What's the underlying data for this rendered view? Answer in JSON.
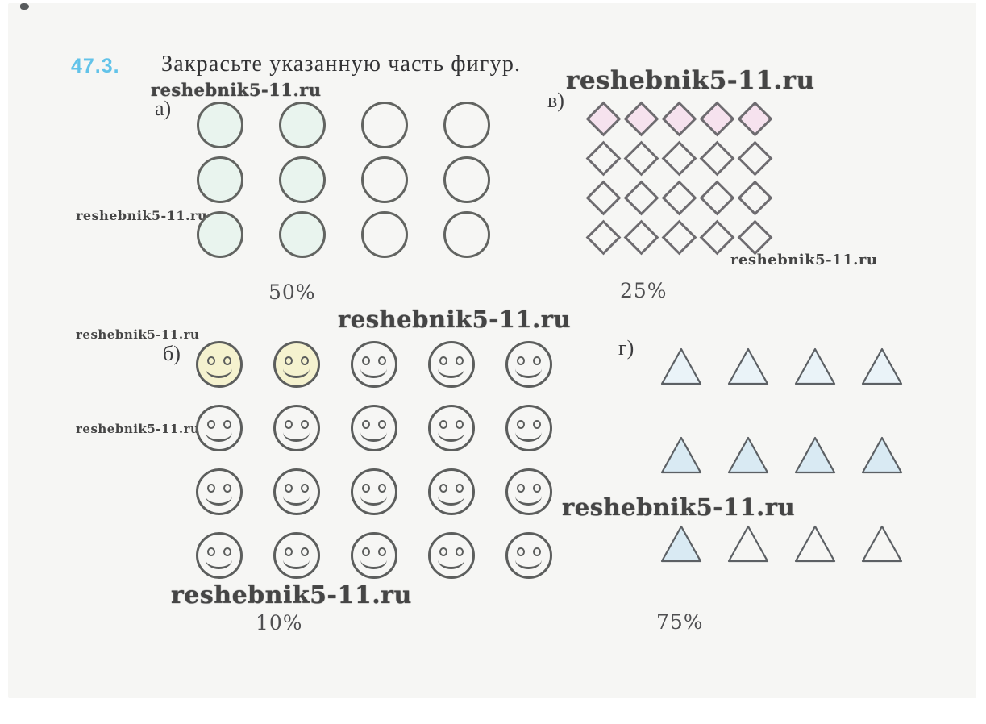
{
  "problem": {
    "number": "47.3.",
    "title": "Закрасьте указанную часть фигур."
  },
  "watermark": {
    "text": "reshebnik5-11.ru"
  },
  "colors": {
    "accent_number": "#62c3e9",
    "outline_gray": "#5f6160",
    "circle_shade": "#e9f4ee",
    "diamond_shade": "#f6e2ee",
    "smiley_shade": "#f5f2cf",
    "triangle_shade_light": "#eaf3f8",
    "triangle_shade_med": "#d9eaf3"
  },
  "sections": [
    {
      "key": "a",
      "label": "а)",
      "shape": "circle",
      "rows": 3,
      "cols": 4,
      "percent_label": "50%",
      "shaded": [
        [
          0,
          0
        ],
        [
          0,
          1
        ],
        [
          1,
          0
        ],
        [
          1,
          1
        ],
        [
          2,
          0
        ],
        [
          2,
          1
        ]
      ]
    },
    {
      "key": "v",
      "label": "в)",
      "shape": "diamond",
      "rows": 4,
      "cols": 5,
      "percent_label": "25%",
      "shaded": [
        [
          0,
          0
        ],
        [
          0,
          1
        ],
        [
          0,
          2
        ],
        [
          0,
          3
        ],
        [
          0,
          4
        ]
      ]
    },
    {
      "key": "b",
      "label": "б)",
      "shape": "smiley",
      "rows": 4,
      "cols": 5,
      "percent_label": "10%",
      "shaded": [
        [
          0,
          0
        ],
        [
          0,
          1
        ]
      ]
    },
    {
      "key": "g",
      "label": "г)",
      "shape": "triangle",
      "rows": 3,
      "cols": 4,
      "percent_label": "75%",
      "shaded": [
        [
          0,
          0,
          "light"
        ],
        [
          0,
          1,
          "light"
        ],
        [
          0,
          2,
          "light"
        ],
        [
          0,
          3,
          "light"
        ],
        [
          1,
          0,
          "med"
        ],
        [
          1,
          1,
          "med"
        ],
        [
          1,
          2,
          "med"
        ],
        [
          1,
          3,
          "med"
        ],
        [
          2,
          0,
          "med"
        ]
      ]
    }
  ]
}
